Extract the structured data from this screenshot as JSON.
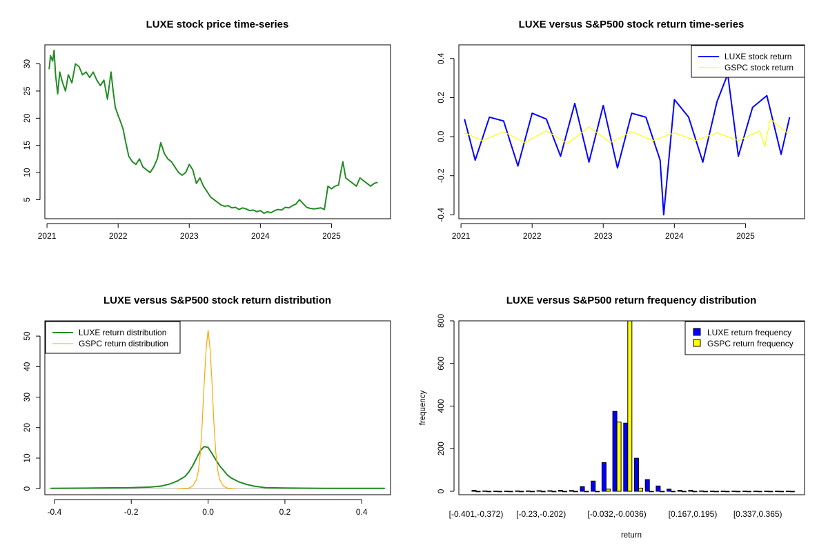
{
  "chart_data": [
    {
      "type": "line",
      "title": "LUXE stock price time-series",
      "xlabel": "",
      "ylabel": "",
      "x_ticks": [
        "2021",
        "2022",
        "2023",
        "2024",
        "2025"
      ],
      "y_ticks": [
        "5",
        "10",
        "15",
        "20",
        "25",
        "30"
      ],
      "xlim": [
        2020.97,
        2025.83
      ],
      "ylim": [
        1.5,
        33.5
      ],
      "series": [
        {
          "name": "LUXE stock price",
          "color": "#228B22",
          "x": [
            2021.03,
            2021.05,
            2021.08,
            2021.1,
            2021.12,
            2021.15,
            2021.18,
            2021.22,
            2021.26,
            2021.3,
            2021.35,
            2021.4,
            2021.45,
            2021.5,
            2021.55,
            2021.6,
            2021.65,
            2021.7,
            2021.75,
            2021.8,
            2021.85,
            2021.9,
            2021.93,
            2021.96,
            2022.0,
            2022.03,
            2022.07,
            2022.1,
            2022.15,
            2022.2,
            2022.25,
            2022.3,
            2022.35,
            2022.4,
            2022.45,
            2022.5,
            2022.55,
            2022.6,
            2022.65,
            2022.7,
            2022.75,
            2022.8,
            2022.85,
            2022.9,
            2022.95,
            2023.0,
            2023.05,
            2023.1,
            2023.15,
            2023.2,
            2023.25,
            2023.3,
            2023.35,
            2023.4,
            2023.45,
            2023.5,
            2023.55,
            2023.6,
            2023.65,
            2023.7,
            2023.75,
            2023.8,
            2023.85,
            2023.9,
            2023.95,
            2024.0,
            2024.05,
            2024.1,
            2024.15,
            2024.2,
            2024.25,
            2024.3,
            2024.35,
            2024.4,
            2024.45,
            2024.5,
            2024.55,
            2024.6,
            2024.65,
            2024.7,
            2024.75,
            2024.8,
            2024.85,
            2024.9,
            2024.95,
            2025.0,
            2025.05,
            2025.1,
            2025.13,
            2025.16,
            2025.2,
            2025.25,
            2025.3,
            2025.35,
            2025.4,
            2025.45,
            2025.5,
            2025.55,
            2025.6,
            2025.65
          ],
          "values": [
            29,
            31.5,
            30.5,
            32.5,
            28,
            24.5,
            28.5,
            26.5,
            25,
            28,
            26.5,
            30,
            29.5,
            28,
            28.5,
            27.5,
            28.5,
            27,
            26,
            27,
            23.5,
            28.5,
            25,
            22,
            20.5,
            19.5,
            18,
            16,
            13,
            12,
            11.5,
            12.5,
            11,
            10.5,
            10,
            11,
            12.5,
            15.5,
            13.5,
            12.5,
            12,
            11,
            10,
            9.5,
            10,
            11.5,
            10.5,
            8,
            9,
            7.5,
            6.5,
            5.5,
            5,
            4.5,
            4,
            3.8,
            3.9,
            3.5,
            3.6,
            3.2,
            3.5,
            3.3,
            3.0,
            3.1,
            2.8,
            3.0,
            2.5,
            2.8,
            2.6,
            3.0,
            3.2,
            3.1,
            3.6,
            3.5,
            3.9,
            4.2,
            5.0,
            4.3,
            3.6,
            3.4,
            3.3,
            3.4,
            3.5,
            3.2,
            7.5,
            7.0,
            7.5,
            7.7,
            10.0,
            12.0,
            9.0,
            8.5,
            8.0,
            7.5,
            9.0,
            8.5,
            8.0,
            7.5,
            8.0,
            8.2
          ]
        }
      ]
    },
    {
      "type": "line",
      "title": "LUXE versus S&P500 stock return time-series",
      "xlabel": "",
      "ylabel": "",
      "x_ticks": [
        "2021",
        "2022",
        "2023",
        "2024",
        "2025"
      ],
      "y_ticks": [
        "-0.4",
        "-0.2",
        "0.0",
        "0.2",
        "0.4"
      ],
      "xlim": [
        2020.97,
        2025.83
      ],
      "ylim": [
        -0.42,
        0.47
      ],
      "legend_position": "top-right",
      "series": [
        {
          "name": "LUXE stock return",
          "color": "#0000FF",
          "x": [
            2021.05,
            2021.2,
            2021.4,
            2021.6,
            2021.8,
            2022.0,
            2022.2,
            2022.4,
            2022.6,
            2022.8,
            2023.0,
            2023.2,
            2023.4,
            2023.6,
            2023.8,
            2023.85,
            2024.0,
            2024.2,
            2024.4,
            2024.6,
            2024.75,
            2024.9,
            2025.1,
            2025.3,
            2025.5,
            2025.62
          ],
          "values": [
            0.09,
            -0.12,
            0.1,
            0.08,
            -0.15,
            0.12,
            0.09,
            -0.1,
            0.17,
            -0.13,
            0.16,
            -0.16,
            0.12,
            0.1,
            -0.12,
            -0.4,
            0.19,
            0.1,
            -0.13,
            0.18,
            0.32,
            -0.1,
            0.15,
            0.21,
            -0.09,
            0.1
          ]
        },
        {
          "name": "GSPC stock return",
          "color": "#FFFF00",
          "x": [
            2021.05,
            2021.3,
            2021.6,
            2021.9,
            2022.2,
            2022.5,
            2022.8,
            2023.1,
            2023.4,
            2023.7,
            2024.0,
            2024.3,
            2024.6,
            2024.9,
            2025.2,
            2025.27,
            2025.35,
            2025.6
          ],
          "values": [
            0.02,
            -0.02,
            0.025,
            -0.03,
            0.03,
            -0.035,
            0.05,
            -0.03,
            0.025,
            -0.02,
            0.02,
            -0.02,
            0.02,
            -0.02,
            0.03,
            -0.05,
            0.09,
            0.015
          ]
        }
      ]
    },
    {
      "type": "line",
      "title": "LUXE versus S&P500 stock return distribution",
      "xlabel": "",
      "ylabel": "",
      "x_ticks": [
        "-0.4",
        "-0.2",
        "0.0",
        "0.2",
        "0.4"
      ],
      "y_ticks": [
        "0",
        "10",
        "20",
        "30",
        "40",
        "50"
      ],
      "xlim": [
        -0.425,
        0.475
      ],
      "ylim": [
        -2,
        55
      ],
      "legend_position": "top-left",
      "series": [
        {
          "name": "LUXE return distribution",
          "color": "#228B22",
          "x": [
            -0.41,
            -0.3,
            -0.2,
            -0.15,
            -0.12,
            -0.1,
            -0.08,
            -0.06,
            -0.05,
            -0.04,
            -0.03,
            -0.02,
            -0.01,
            0.0,
            0.01,
            0.02,
            0.03,
            0.04,
            0.05,
            0.06,
            0.08,
            0.1,
            0.12,
            0.15,
            0.2,
            0.3,
            0.46
          ],
          "values": [
            0.1,
            0.2,
            0.3,
            0.5,
            0.9,
            1.5,
            2.5,
            4,
            5.5,
            7.5,
            10,
            12.5,
            13.8,
            13.5,
            11.5,
            9.5,
            7.5,
            6,
            4.5,
            3.5,
            2.2,
            1.4,
            0.8,
            0.3,
            0.2,
            0.1,
            0.1
          ]
        },
        {
          "name": "GSPC return distribution",
          "color": "#FFA500",
          "x": [
            -0.08,
            -0.05,
            -0.04,
            -0.03,
            -0.025,
            -0.02,
            -0.015,
            -0.01,
            -0.005,
            0.0,
            0.005,
            0.01,
            0.015,
            0.02,
            0.025,
            0.03,
            0.04,
            0.05,
            0.07
          ],
          "values": [
            0,
            0.2,
            0.8,
            3,
            6,
            12,
            22,
            35,
            46,
            52,
            46,
            35,
            22,
            12,
            6,
            3,
            0.8,
            0.2,
            0
          ]
        }
      ]
    },
    {
      "type": "bar",
      "title": "LUXE versus S&P500 return frequency distribution",
      "xlabel": "return",
      "ylabel": "frequency",
      "y_ticks": [
        "0",
        "200",
        "400",
        "600",
        "800"
      ],
      "ylim": [
        0,
        800
      ],
      "tick_labels": [
        "[-0.401,-0.372)",
        "[-0.23,-0.202)",
        "[-0.032,-0.0036)",
        "[0.167,0.195)",
        "[0.337,0.365)"
      ],
      "tick_label_bins": [
        0,
        6,
        13,
        20,
        26
      ],
      "legend_position": "top-right",
      "series": [
        {
          "name": "LUXE return frequency",
          "color": "#0000FF",
          "values": [
            5,
            2,
            1,
            1,
            2,
            2,
            3,
            3,
            5,
            4,
            22,
            48,
            135,
            375,
            320,
            155,
            55,
            25,
            10,
            5,
            5,
            2,
            1,
            1,
            1,
            1,
            1,
            1,
            1,
            1
          ]
        },
        {
          "name": "GSPC return frequency",
          "color": "#FFFF00",
          "values": [
            0,
            0,
            0,
            0,
            0,
            0,
            0,
            0,
            0,
            0,
            0,
            0,
            10,
            325,
            840,
            15,
            0,
            0,
            0,
            0,
            0,
            0,
            0,
            0,
            0,
            0,
            0,
            0,
            0,
            0
          ]
        }
      ]
    }
  ]
}
